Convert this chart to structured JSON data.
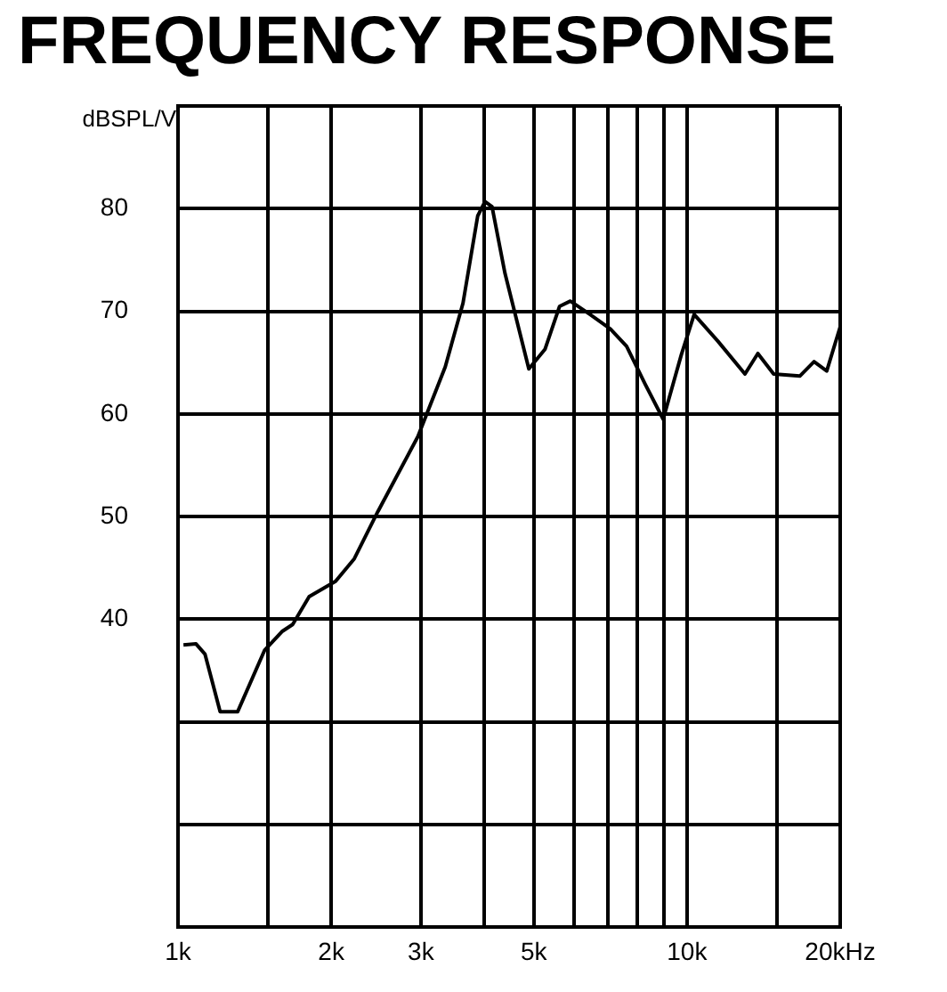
{
  "chart_data": {
    "type": "line",
    "title": "FREQUENCY RESPONSE",
    "ylabel": "dBSPL/V",
    "log": "x",
    "grid": true,
    "legend": false,
    "marker": "none",
    "line_style": "solid",
    "xlim": [
      1,
      20
    ],
    "xticks": [
      {
        "value": 1,
        "label": "1k"
      },
      {
        "value": 1.5,
        "label": null
      },
      {
        "value": 2,
        "label": "2k"
      },
      {
        "value": 3,
        "label": "3k"
      },
      {
        "value": 4,
        "label": null
      },
      {
        "value": 5,
        "label": "5k"
      },
      {
        "value": 6,
        "label": null
      },
      {
        "value": 7,
        "label": null
      },
      {
        "value": 8,
        "label": null
      },
      {
        "value": 9,
        "label": null
      },
      {
        "value": 10,
        "label": "10k"
      },
      {
        "value": 15,
        "label": null
      },
      {
        "value": 20,
        "label": "20kHz"
      }
    ],
    "ylim": [
      10,
      90
    ],
    "yticks": [
      {
        "value": 10,
        "label": null
      },
      {
        "value": 20,
        "label": null
      },
      {
        "value": 30,
        "label": null
      },
      40,
      50,
      60,
      70,
      80,
      {
        "value": 90,
        "label": null
      }
    ],
    "x": [
      1.025,
      1.085,
      1.13,
      1.21,
      1.31,
      1.48,
      1.6,
      1.68,
      1.81,
      2.04,
      2.22,
      2.47,
      2.96,
      3.35,
      3.63,
      3.88,
      4.01,
      4.14,
      4.39,
      4.89,
      5.26,
      5.62,
      5.9,
      6.45,
      7.07,
      7.61,
      8.28,
      8.98,
      9.75,
      10.33,
      11.5,
      13,
      13.78,
      14.8,
      16.66,
      17.77,
      18.82,
      20
    ],
    "series": [
      {
        "color": "#000000",
        "values": [
          37.5,
          37.6,
          36.6,
          31,
          31,
          37,
          38.8,
          39.5,
          42.2,
          43.7,
          45.9,
          50.5,
          57.8,
          64.6,
          70.8,
          79.3,
          80.7,
          80.2,
          73.7,
          64.4,
          66.3,
          70.5,
          71,
          69.7,
          68.3,
          66.6,
          62.9,
          59.5,
          65.8,
          69.7,
          67.1,
          63.9,
          65.9,
          63.9,
          63.7,
          65.1,
          64.2,
          68.5
        ]
      }
    ]
  }
}
